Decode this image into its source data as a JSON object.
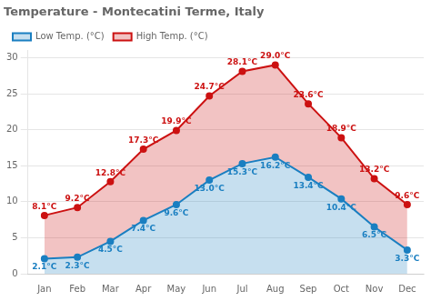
{
  "chart_data": {
    "type": "line",
    "title": "Temperature - Montecatini Terme, Italy",
    "categories": [
      "Jan",
      "Feb",
      "Mar",
      "Apr",
      "May",
      "Jun",
      "Jul",
      "Aug",
      "Sep",
      "Oct",
      "Nov",
      "Dec"
    ],
    "series": [
      {
        "name": "Low Temp. (°C)",
        "color": "#1a7fc1",
        "values": [
          2.1,
          2.3,
          4.5,
          7.4,
          9.6,
          13.0,
          15.3,
          16.2,
          13.4,
          10.4,
          6.5,
          3.3
        ],
        "value_labels": [
          "2.1°C",
          "2.3°C",
          "4.5°C",
          "7.4°C",
          "9.6°C",
          "13.0°C",
          "15.3°C",
          "16.2°C",
          "13.4°C",
          "10.4°C",
          "6.5°C",
          "3.3°C"
        ]
      },
      {
        "name": "High Temp. (°C)",
        "color": "#cc1111",
        "values": [
          8.1,
          9.2,
          12.8,
          17.3,
          19.9,
          24.7,
          28.1,
          29.0,
          23.6,
          18.9,
          13.2,
          9.6
        ],
        "value_labels": [
          "8.1°C",
          "9.2°C",
          "12.8°C",
          "17.3°C",
          "19.9°C",
          "24.7°C",
          "28.1°C",
          "29.0°C",
          "23.6°C",
          "18.9°C",
          "13.2°C",
          "9.6°C"
        ]
      }
    ],
    "ylim": [
      0,
      31
    ],
    "yticks": [
      0,
      5,
      10,
      15,
      20,
      25,
      30
    ],
    "grid": true,
    "legend": "upper left",
    "data_labels": true,
    "marker": "o"
  }
}
